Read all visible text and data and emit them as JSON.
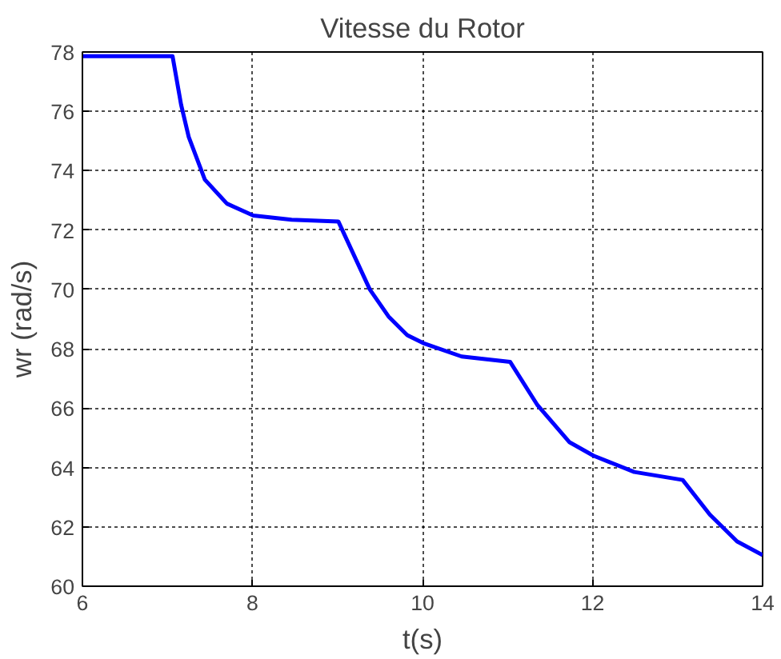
{
  "chart_data": {
    "type": "line",
    "title": "Vitesse du Rotor",
    "xlabel": "t(s)",
    "ylabel": "wr (rad/s)",
    "series": [
      {
        "color": "#0000ff",
        "x": [
          6,
          7.06,
          7.16,
          7.25,
          7.44,
          7.7,
          8.01,
          8.46,
          9.01,
          9.22,
          9.38,
          9.6,
          9.82,
          10.01,
          10.46,
          11.03,
          11.35,
          11.73,
          12.01,
          12.49,
          13.06,
          13.38,
          13.7,
          14
        ],
        "values": [
          77.86,
          77.86,
          76.23,
          75.14,
          73.7,
          72.89,
          72.49,
          72.35,
          72.29,
          70.99,
          70.0,
          69.09,
          68.46,
          68.19,
          67.74,
          67.56,
          66.11,
          64.85,
          64.4,
          63.85,
          63.58,
          62.41,
          61.51,
          61.05
        ]
      }
    ],
    "xlim": [
      6,
      14
    ],
    "xticks": [
      6,
      8,
      10,
      12,
      14
    ],
    "ylim": [
      60,
      78
    ],
    "yticks": [
      60,
      62,
      64,
      66,
      68,
      70,
      72,
      74,
      76,
      78
    ],
    "grid": true,
    "line_style": "solid",
    "marker": "none"
  }
}
